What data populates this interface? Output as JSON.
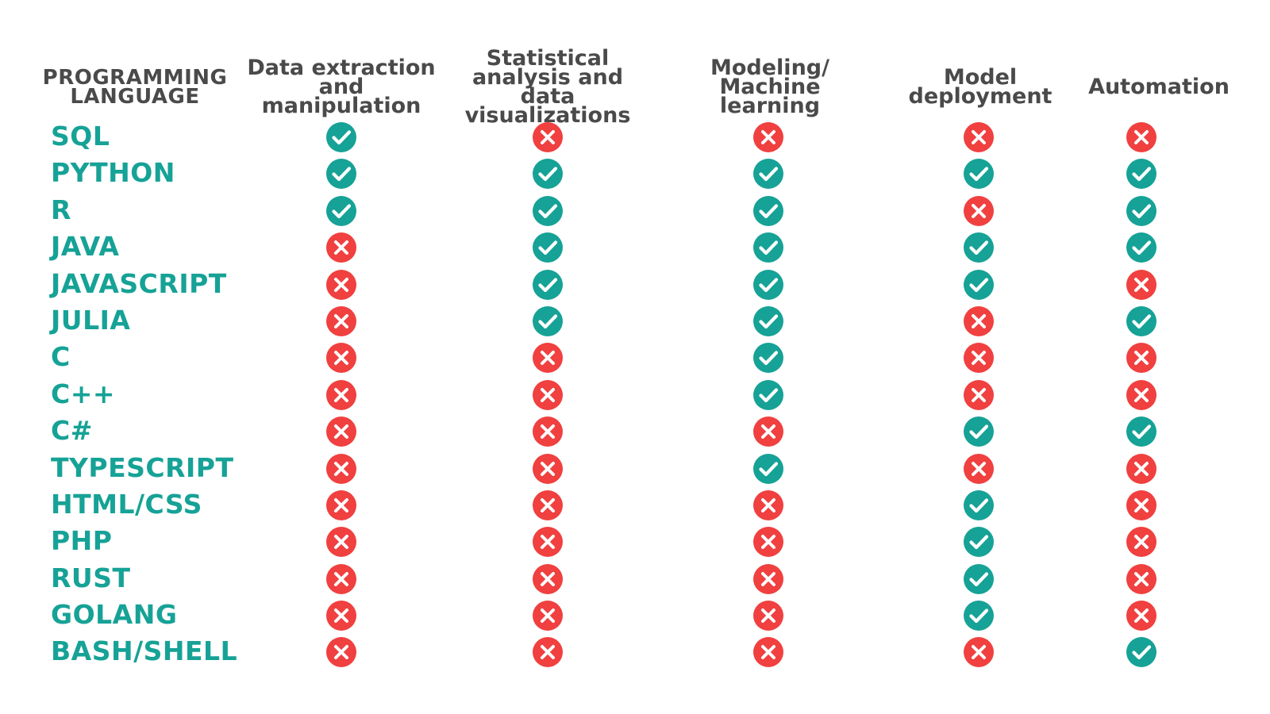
{
  "header": {
    "language_col": "PROGRAMMING\nLANGUAGE",
    "columns": [
      "Data extraction\nand manipulation",
      "Statistical\nanalysis and data\nvisualizations",
      "Modeling/\nMachine learning",
      "Model\ndeployment",
      "Automation"
    ]
  },
  "colors": {
    "yes": "#16a296",
    "no": "#f0403f",
    "language_text": "#16a296",
    "header_text": "#4a4a4a"
  },
  "icons": {
    "yes": "check-circle-icon",
    "no": "x-circle-icon"
  },
  "rows": [
    {
      "language": "SQL",
      "values": [
        true,
        false,
        false,
        false,
        false
      ]
    },
    {
      "language": "PYTHON",
      "values": [
        true,
        true,
        true,
        true,
        true
      ]
    },
    {
      "language": "R",
      "values": [
        true,
        true,
        true,
        false,
        true
      ]
    },
    {
      "language": "JAVA",
      "values": [
        false,
        true,
        true,
        true,
        true
      ]
    },
    {
      "language": "JAVASCRIPT",
      "values": [
        false,
        true,
        true,
        true,
        false
      ]
    },
    {
      "language": "JULIA",
      "values": [
        false,
        true,
        true,
        false,
        true
      ]
    },
    {
      "language": "C",
      "values": [
        false,
        false,
        true,
        false,
        false
      ]
    },
    {
      "language": "C++",
      "values": [
        false,
        false,
        true,
        false,
        false
      ]
    },
    {
      "language": "C#",
      "values": [
        false,
        false,
        false,
        true,
        true
      ]
    },
    {
      "language": "TYPESCRIPT",
      "values": [
        false,
        false,
        true,
        false,
        false
      ]
    },
    {
      "language": "HTML/CSS",
      "values": [
        false,
        false,
        false,
        true,
        false
      ]
    },
    {
      "language": "PHP",
      "values": [
        false,
        false,
        false,
        true,
        false
      ]
    },
    {
      "language": "RUST",
      "values": [
        false,
        false,
        false,
        true,
        false
      ]
    },
    {
      "language": "GOLANG",
      "values": [
        false,
        false,
        false,
        true,
        false
      ]
    },
    {
      "language": "BASH/SHELL",
      "values": [
        false,
        false,
        false,
        false,
        true
      ]
    }
  ]
}
